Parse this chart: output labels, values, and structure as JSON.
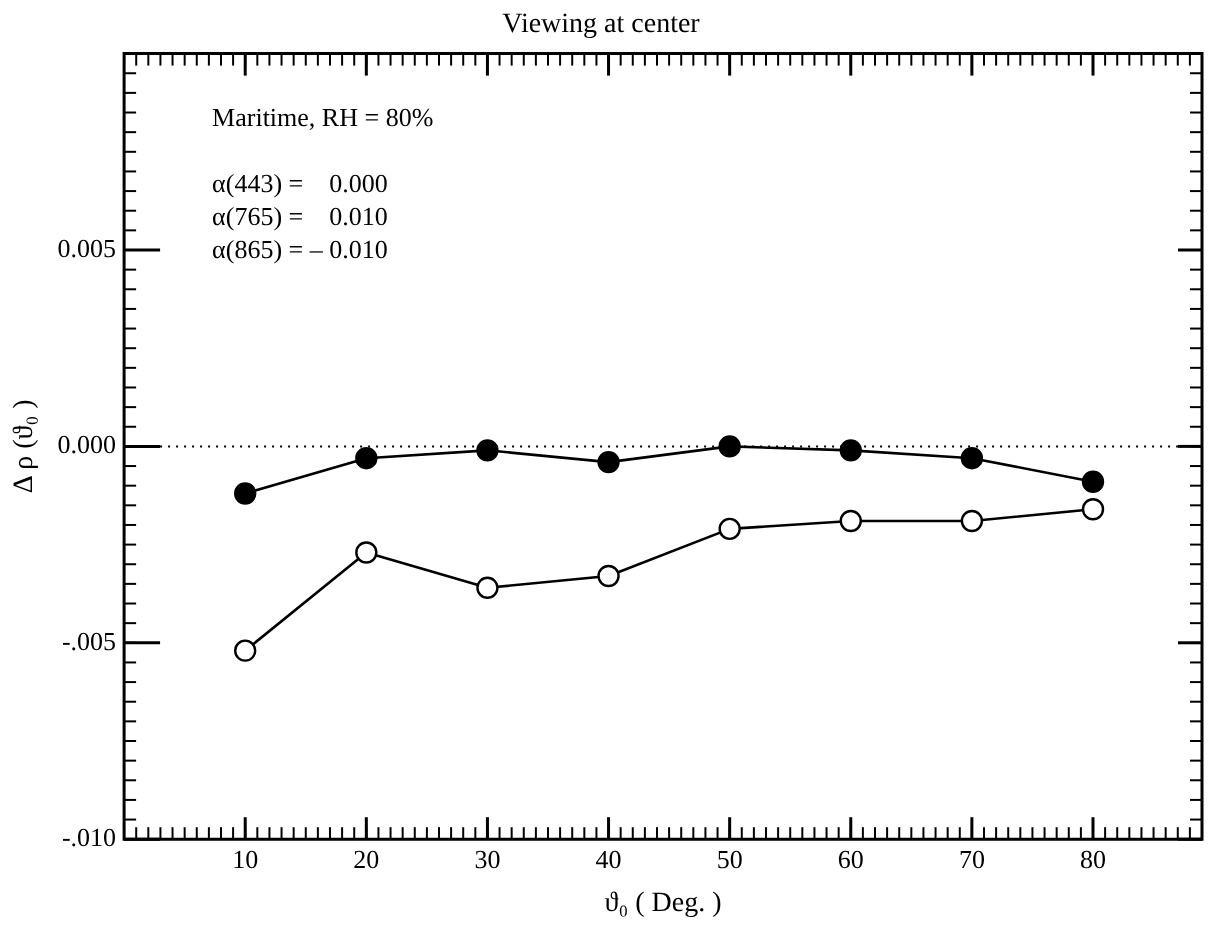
{
  "chart_data": {
    "type": "line",
    "title": "Viewing at center",
    "xlabel": "ϑ₀ ( Deg. )",
    "ylabel": "Δ ρ (ϑ₀ )",
    "x": [
      10,
      20,
      30,
      40,
      50,
      60,
      70,
      80
    ],
    "series": [
      {
        "color": "#000000",
        "marker": "circle",
        "values": [
          -0.0012,
          -0.0003,
          -0.0001,
          -0.0004,
          0.0,
          -0.0001,
          -0.0003,
          -0.0009
        ]
      },
      {
        "color": "#000000",
        "marker": "circle",
        "values": [
          -0.0052,
          -0.0027,
          -0.0036,
          -0.0033,
          -0.0021,
          -0.0019,
          -0.0019,
          -0.0016
        ]
      }
    ],
    "xlim": [
      0,
      89
    ],
    "ylim": [
      -0.01,
      0.01
    ],
    "xticks": [
      10,
      20,
      30,
      40,
      50,
      60,
      70,
      80
    ],
    "yticks": [
      {
        "value": -0.01,
        "label": "-.010"
      },
      {
        "value": -0.005,
        "label": "-.005"
      },
      {
        "value": 0,
        "label": "0.000"
      },
      {
        "value": 0.005,
        "label": "0.005"
      }
    ],
    "ref_lines": [
      {
        "axis": "y",
        "value": 0,
        "line_style": "dotted",
        "color": "#000000"
      }
    ],
    "annotations": [
      "Maritime, RH = 80%",
      "α(443) =    0.000",
      "α(765) =    0.010",
      "α(865) = – 0.010"
    ],
    "grid": false,
    "legend": false,
    "line_style": "solid"
  }
}
